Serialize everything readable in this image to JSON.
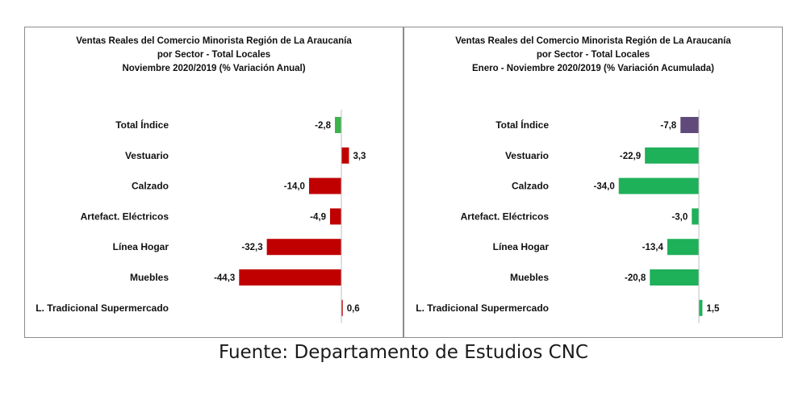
{
  "chart_data": [
    {
      "type": "bar",
      "orientation": "horizontal",
      "title_lines": [
        "Ventas Reales del Comercio Minorista  Región de La Araucanía",
        "por Sector  - Total Locales",
        "Noviembre 2020/2019  (% Variación Anual)"
      ],
      "categories": [
        "Total Índice",
        "Vestuario",
        "Calzado",
        "Artefact. Eléctricos",
        "Línea Hogar",
        "Muebles",
        "L. Tradicional Supermercado"
      ],
      "values": [
        -2.8,
        3.3,
        -14.0,
        -4.9,
        -32.3,
        -44.3,
        0.6
      ],
      "value_labels": [
        "-2,8",
        "3,3",
        "-14,0",
        "-4,9",
        "-32,3",
        "-44,3",
        "0,6"
      ],
      "colors": [
        "#3cb44b",
        "#c00000",
        "#c00000",
        "#c00000",
        "#c00000",
        "#c00000",
        "#c00000"
      ],
      "grid": false,
      "legend": "none"
    },
    {
      "type": "bar",
      "orientation": "horizontal",
      "title_lines": [
        "Ventas Reales del Comercio Minorista Región de La Araucanía",
        "por Sector - Total Locales",
        "Enero - Noviembre 2020/2019  (% Variación Acumulada)"
      ],
      "categories": [
        "Total Índice",
        "Vestuario",
        "Calzado",
        "Artefact. Eléctricos",
        "Línea Hogar",
        "Muebles",
        "L. Tradicional Supermercado"
      ],
      "values": [
        -7.8,
        -22.9,
        -34.0,
        -3.0,
        -13.4,
        -20.8,
        1.5
      ],
      "value_labels": [
        "-7,8",
        "-22,9",
        "-34,0",
        "-3,0",
        "-13,4",
        "-20,8",
        "1,5"
      ],
      "colors": [
        "#604a7b",
        "#1fb05a",
        "#1fb05a",
        "#1fb05a",
        "#1fb05a",
        "#1fb05a",
        "#1fb05a"
      ],
      "grid": false,
      "legend": "none"
    }
  ],
  "source": "Fuente: Departamento de Estudios CNC"
}
